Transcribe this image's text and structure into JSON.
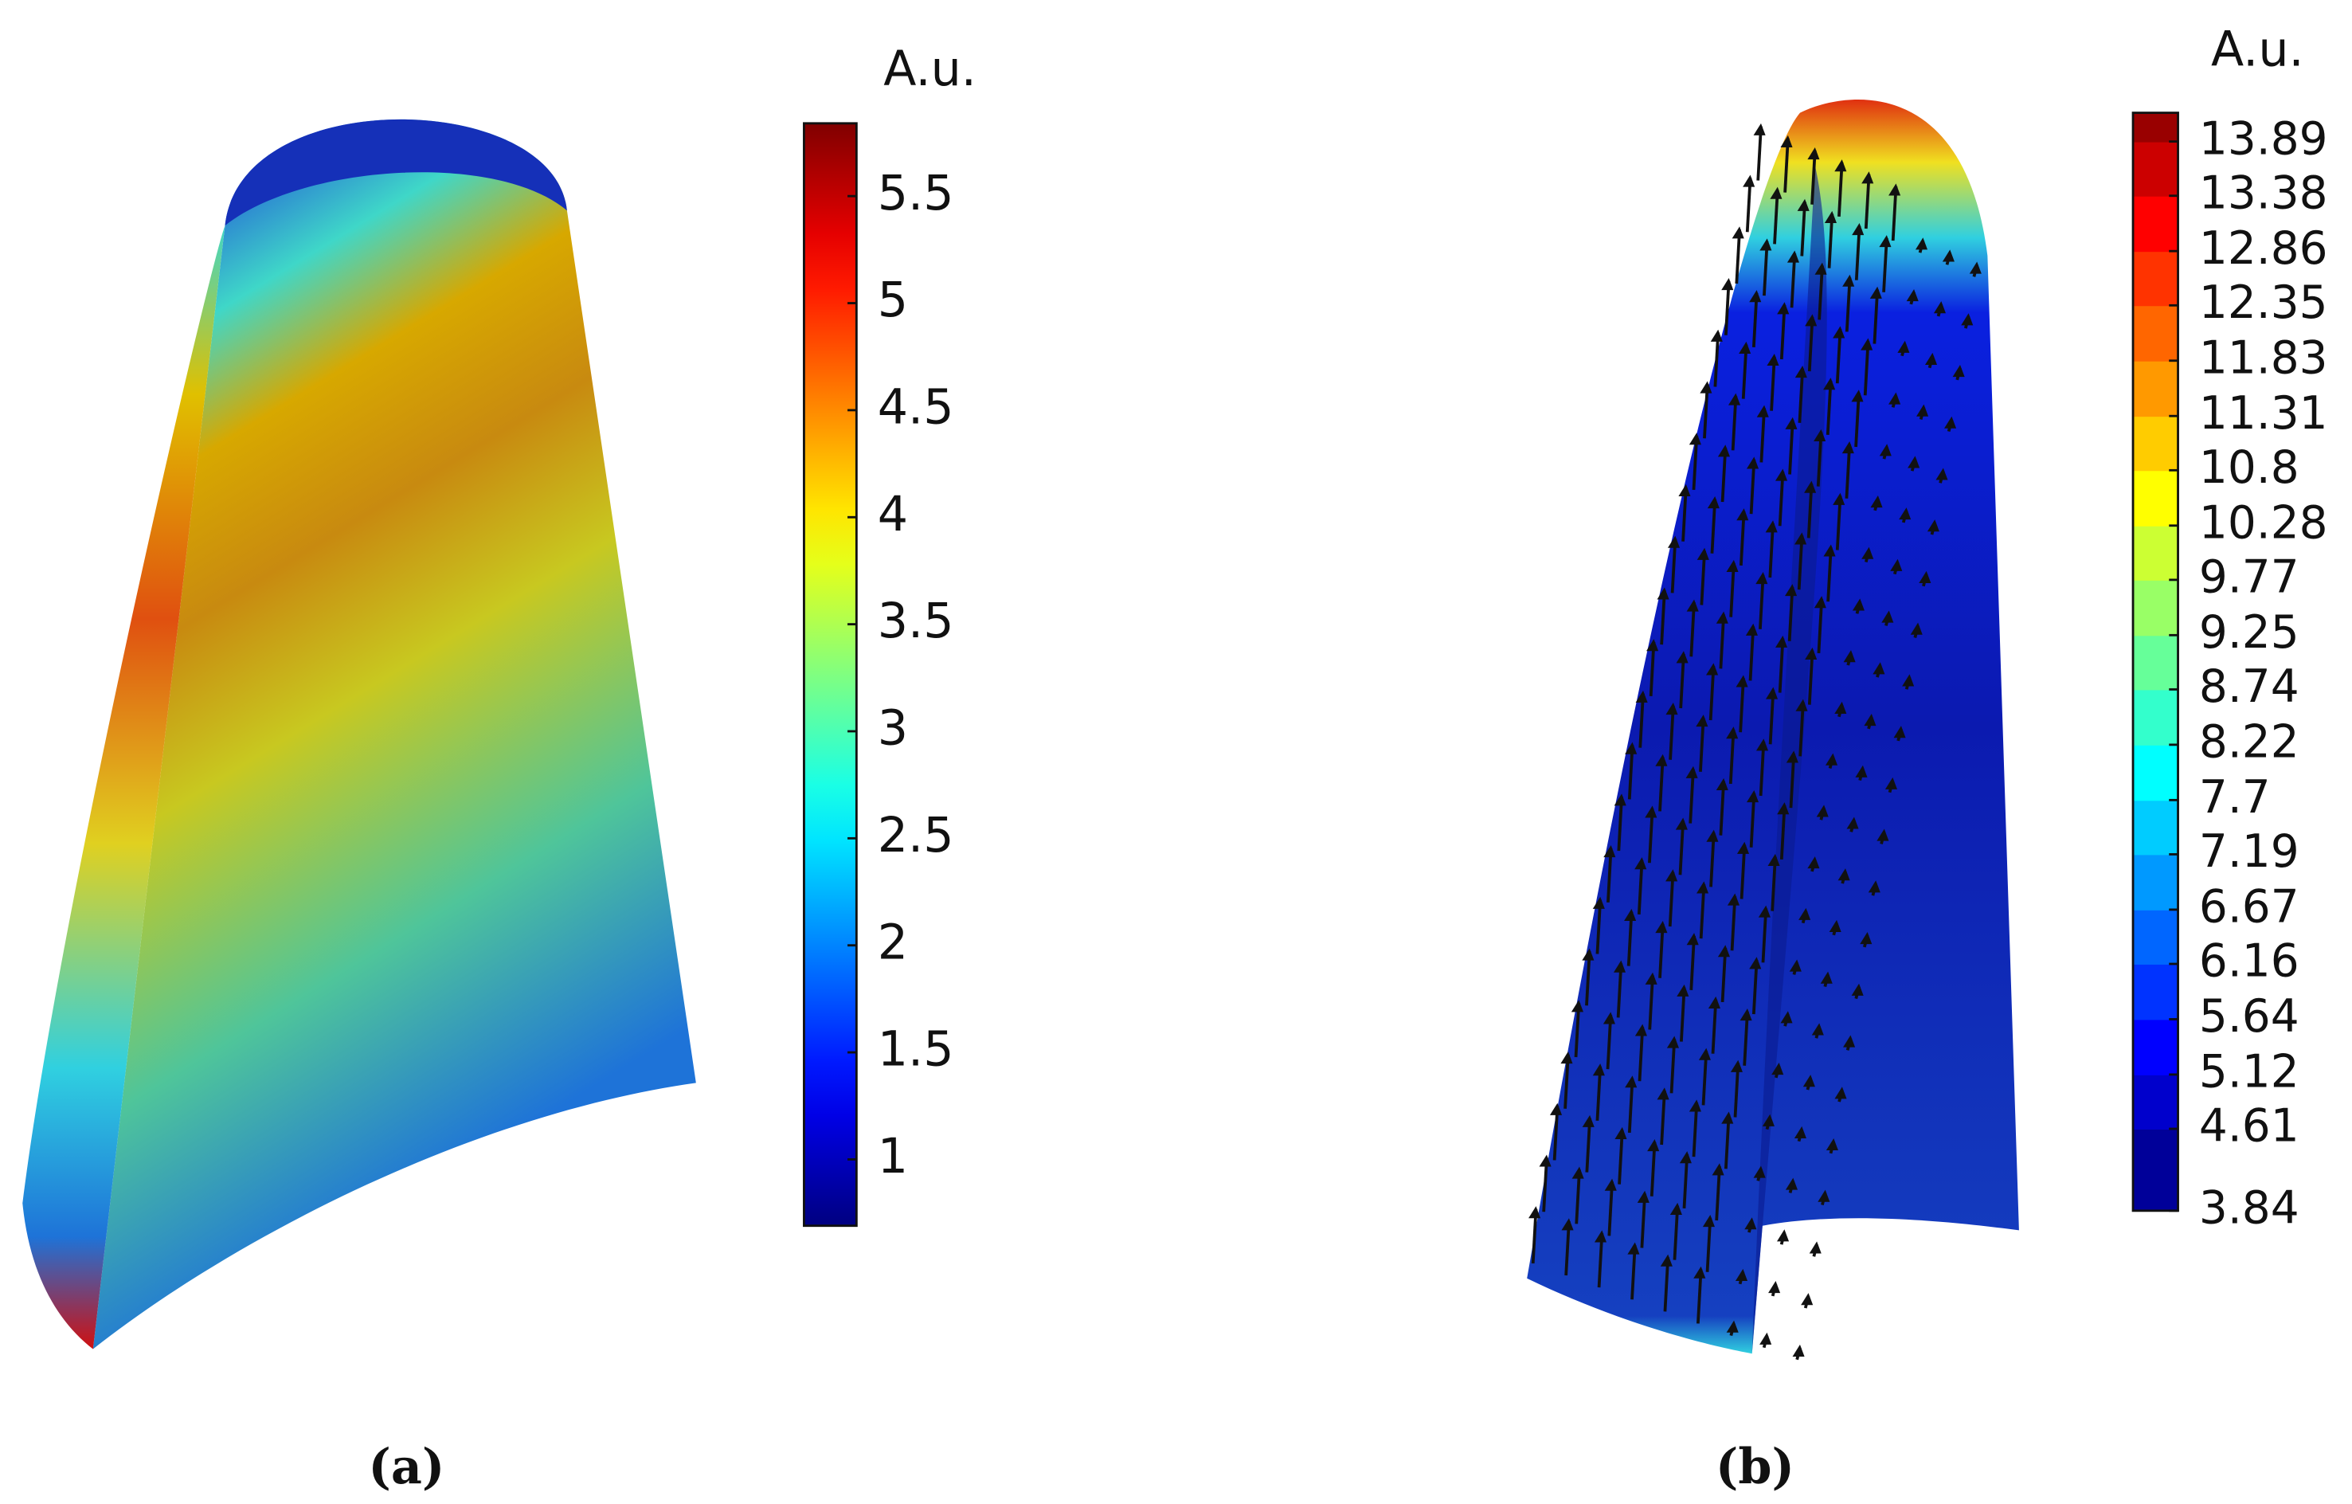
{
  "chart_data": [
    {
      "type": "colormap",
      "caption": "(a)",
      "colorbar_label": "A.u.",
      "colormap": "jet",
      "discrete": false,
      "clim": [
        0.69,
        5.84
      ],
      "cticks": [
        1,
        1.5,
        2,
        2.5,
        3,
        3.5,
        4,
        4.5,
        5,
        5.5
      ]
    },
    {
      "type": "colormap",
      "caption": "(b)",
      "colorbar_label": "A.u.",
      "colormap": "jet",
      "discrete": true,
      "clim": [
        3.84,
        14.16
      ],
      "cticks": [
        3.84,
        4.61,
        5.12,
        5.64,
        6.16,
        6.67,
        7.19,
        7.7,
        8.22,
        8.74,
        9.25,
        9.77,
        10.28,
        10.8,
        11.31,
        11.83,
        12.35,
        12.86,
        13.38,
        13.89
      ]
    }
  ]
}
